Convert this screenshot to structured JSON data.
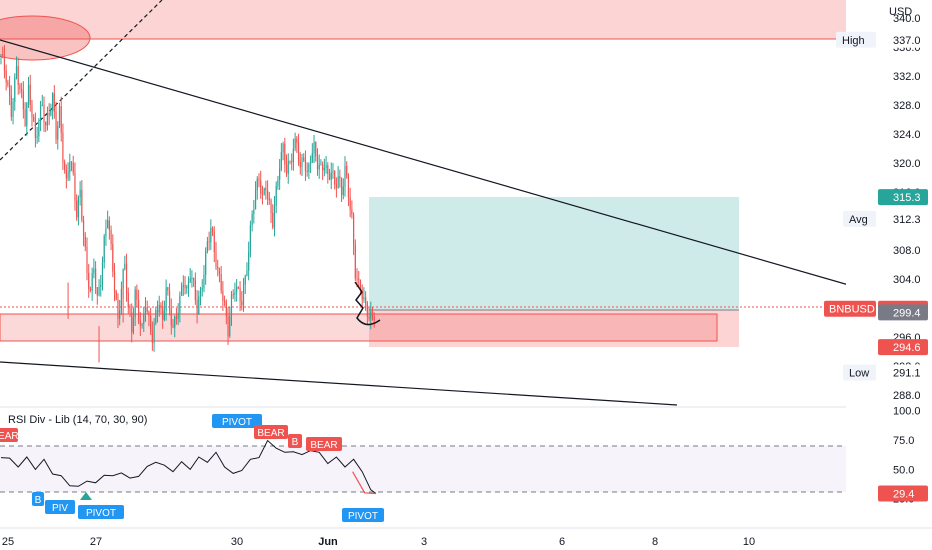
{
  "currency": "USD",
  "price_pane": {
    "tick_labels": [
      "288.0",
      "292.0",
      "296.0",
      "300.0",
      "304.0",
      "308.0",
      "312.0",
      "316.0",
      "320.0",
      "324.0",
      "328.0",
      "332.0",
      "336.0",
      "340.0"
    ],
    "markers": [
      {
        "id": "high",
        "label": "High",
        "value": "337.0",
        "kind": "plain"
      },
      {
        "id": "tp",
        "label": "",
        "value": "315.3",
        "kind": "green"
      },
      {
        "id": "avg",
        "label": "Avg",
        "value": "312.3",
        "kind": "plain"
      },
      {
        "id": "symbol",
        "label": "BNBUSD",
        "value": "299.9",
        "kind": "red"
      },
      {
        "id": "entry",
        "label": "",
        "value": "299.4",
        "kind": "gray"
      },
      {
        "id": "stop",
        "label": "",
        "value": "294.6",
        "kind": "red"
      },
      {
        "id": "low",
        "label": "Low",
        "value": "291.1",
        "kind": "plain"
      }
    ]
  },
  "indicator": {
    "title": "RSI Div - Lib (14, 70, 30, 90)",
    "tick_labels": [
      "100.0",
      "75.0",
      "50.0",
      "25.0"
    ],
    "current_value": "29.4",
    "signals": [
      {
        "text": "BEAR",
        "type": "bear"
      },
      {
        "text": "PIVOT",
        "type": "pivot"
      },
      {
        "text": "BEAR",
        "type": "bear"
      },
      {
        "text": "B",
        "type": "bear"
      },
      {
        "text": "BEAR",
        "type": "bear"
      },
      {
        "text": "B",
        "type": "pivot"
      },
      {
        "text": "PIV",
        "type": "pivot"
      },
      {
        "text": "PIVOT",
        "type": "pivot"
      },
      {
        "text": "PIVOT",
        "type": "pivot"
      }
    ]
  },
  "time_axis": {
    "labels": [
      {
        "text": "25",
        "bold": false
      },
      {
        "text": "27",
        "bold": false
      },
      {
        "text": "30",
        "bold": false
      },
      {
        "text": "Jun",
        "bold": true
      },
      {
        "text": "3",
        "bold": false
      },
      {
        "text": "6",
        "bold": false
      },
      {
        "text": "8",
        "bold": false
      },
      {
        "text": "10",
        "bold": false
      }
    ]
  },
  "colors": {
    "up": "#26a69a",
    "down": "#ef5350",
    "pivot": "#2196f3",
    "bear": "#ef5350",
    "tp_zone": "rgba(38,166,154,0.22)",
    "sl_zone": "rgba(239,83,80,0.25)",
    "text": "#131722",
    "grid": "#e0e3eb"
  },
  "chart_data": [
    {
      "type": "candlestick",
      "symbol": "BNBUSD",
      "y_unit": "USD",
      "ylim": [
        286.0,
        342.5
      ],
      "levels": {
        "high": 337.0,
        "take_profit": 315.3,
        "average": 312.3,
        "last": 299.9,
        "entry": 299.4,
        "stop": 294.6,
        "low": 291.1
      },
      "close_path": [
        [
          0,
          335
        ],
        [
          3,
          332
        ],
        [
          6,
          327
        ],
        [
          9,
          333
        ],
        [
          12,
          329
        ],
        [
          14,
          326
        ],
        [
          16,
          330
        ],
        [
          18,
          327
        ],
        [
          20,
          323
        ],
        [
          22,
          326
        ],
        [
          24,
          328
        ],
        [
          26,
          325
        ],
        [
          28,
          327
        ],
        [
          30,
          329
        ],
        [
          32,
          324
        ],
        [
          34,
          327
        ],
        [
          36,
          321
        ],
        [
          38,
          317
        ],
        [
          40,
          321
        ],
        [
          42,
          318
        ],
        [
          44,
          313
        ],
        [
          46,
          316
        ],
        [
          48,
          310
        ],
        [
          50,
          305
        ],
        [
          52,
          302
        ],
        [
          54,
          306
        ],
        [
          56,
          301
        ],
        [
          58,
          304
        ],
        [
          60,
          309
        ],
        [
          62,
          313
        ],
        [
          64,
          308
        ],
        [
          66,
          303
        ],
        [
          68,
          298
        ],
        [
          70,
          303
        ],
        [
          72,
          306
        ],
        [
          74,
          300
        ],
        [
          76,
          297
        ],
        [
          78,
          302
        ],
        [
          80,
          299
        ],
        [
          82,
          297
        ],
        [
          84,
          301
        ],
        [
          86,
          298
        ],
        [
          88,
          296
        ],
        [
          90,
          299
        ],
        [
          92,
          301
        ],
        [
          94,
          298
        ],
        [
          96,
          303
        ],
        [
          98,
          300
        ],
        [
          100,
          297
        ],
        [
          102,
          299
        ],
        [
          104,
          301
        ],
        [
          106,
          304
        ],
        [
          108,
          302
        ],
        [
          110,
          305
        ],
        [
          112,
          303
        ],
        [
          114,
          300
        ],
        [
          116,
          302
        ],
        [
          118,
          305
        ],
        [
          120,
          309
        ],
        [
          122,
          311
        ],
        [
          124,
          308
        ],
        [
          126,
          305
        ],
        [
          128,
          303
        ],
        [
          130,
          300
        ],
        [
          132,
          297
        ],
        [
          134,
          301
        ],
        [
          136,
          303
        ],
        [
          138,
          302
        ],
        [
          140,
          301
        ],
        [
          142,
          304
        ],
        [
          144,
          308
        ],
        [
          146,
          313
        ],
        [
          148,
          316
        ],
        [
          150,
          318
        ],
        [
          152,
          315
        ],
        [
          154,
          317
        ],
        [
          156,
          314
        ],
        [
          158,
          312
        ],
        [
          160,
          316
        ],
        [
          162,
          320
        ],
        [
          164,
          322
        ],
        [
          166,
          319
        ],
        [
          168,
          320
        ],
        [
          170,
          322
        ],
        [
          172,
          323
        ],
        [
          174,
          319
        ],
        [
          176,
          321
        ],
        [
          178,
          318
        ],
        [
          180,
          321
        ],
        [
          182,
          322
        ],
        [
          184,
          320
        ],
        [
          186,
          319
        ],
        [
          188,
          320
        ],
        [
          190,
          318
        ],
        [
          192,
          319
        ],
        [
          194,
          317
        ],
        [
          196,
          318
        ],
        [
          198,
          316
        ],
        [
          200,
          319
        ],
        [
          202,
          316
        ],
        [
          204,
          312
        ],
        [
          206,
          305
        ],
        [
          208,
          303
        ],
        [
          210,
          302
        ],
        [
          212,
          300
        ],
        [
          214,
          299
        ],
        [
          216,
          298.5
        ],
        [
          218,
          299.9
        ]
      ]
    },
    {
      "type": "line",
      "name": "RSI",
      "ylim": [
        0,
        100
      ],
      "overbought": 70,
      "oversold": 30,
      "values": [
        [
          0,
          60
        ],
        [
          5,
          57
        ],
        [
          10,
          52
        ],
        [
          15,
          58
        ],
        [
          20,
          50
        ],
        [
          25,
          56
        ],
        [
          30,
          46
        ],
        [
          35,
          42
        ],
        [
          40,
          36
        ],
        [
          45,
          33
        ],
        [
          50,
          40
        ],
        [
          55,
          36
        ],
        [
          60,
          45
        ],
        [
          65,
          42
        ],
        [
          70,
          47
        ],
        [
          75,
          40
        ],
        [
          80,
          44
        ],
        [
          85,
          50
        ],
        [
          90,
          56
        ],
        [
          95,
          51
        ],
        [
          100,
          48
        ],
        [
          105,
          54
        ],
        [
          110,
          50
        ],
        [
          115,
          58
        ],
        [
          120,
          56
        ],
        [
          125,
          62
        ],
        [
          130,
          52
        ],
        [
          135,
          44
        ],
        [
          140,
          49
        ],
        [
          145,
          56
        ],
        [
          150,
          60
        ],
        [
          155,
          72
        ],
        [
          160,
          68
        ],
        [
          165,
          62
        ],
        [
          170,
          65
        ],
        [
          175,
          60
        ],
        [
          180,
          66
        ],
        [
          185,
          62
        ],
        [
          190,
          55
        ],
        [
          195,
          58
        ],
        [
          200,
          52
        ],
        [
          205,
          56
        ],
        [
          210,
          48
        ],
        [
          215,
          30
        ],
        [
          218,
          29.4
        ]
      ]
    }
  ]
}
